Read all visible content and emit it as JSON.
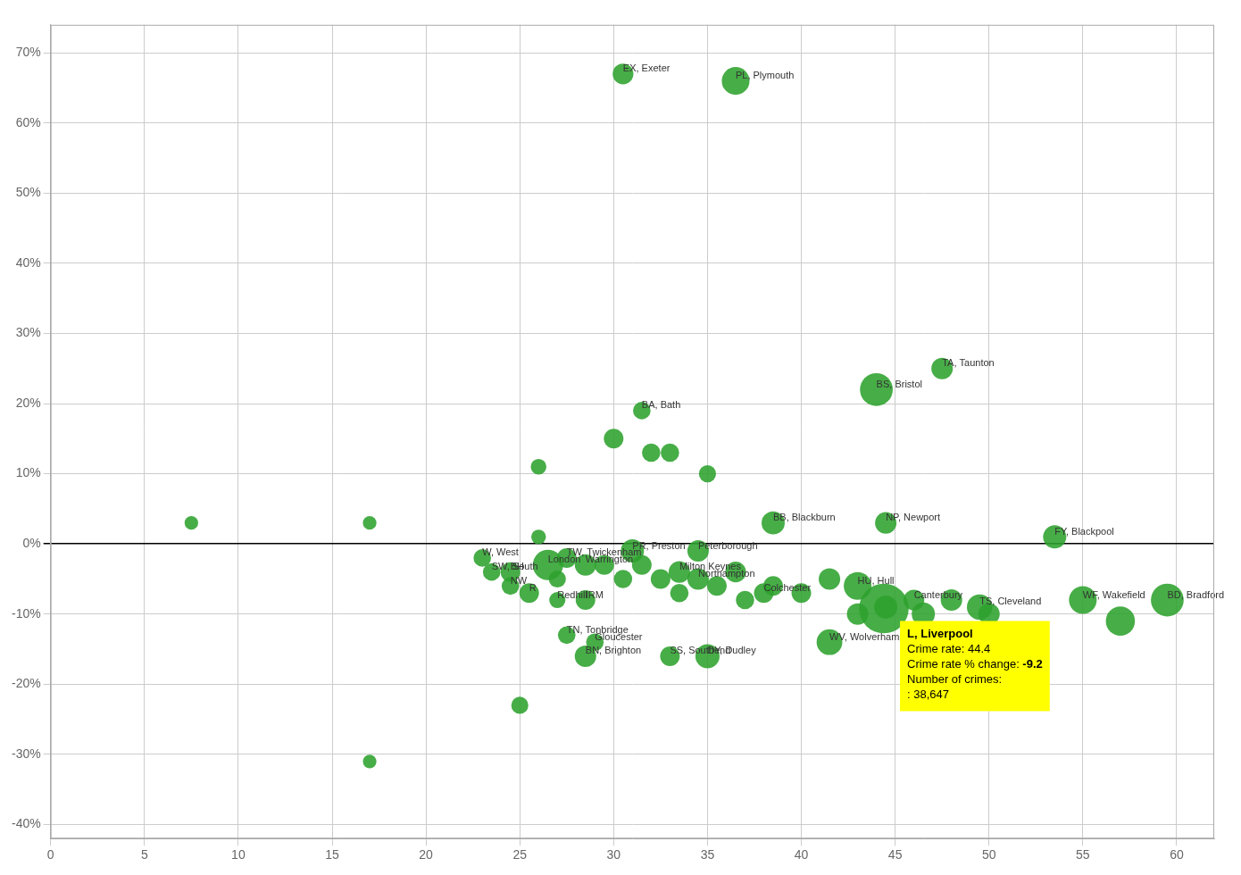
{
  "chart_data": {
    "type": "bubble",
    "color": "#2da22d",
    "grid": true,
    "xlim": [
      0,
      62
    ],
    "ylim": [
      -42,
      74
    ],
    "xticks": [
      0,
      5,
      10,
      15,
      20,
      25,
      30,
      35,
      40,
      45,
      50,
      55,
      60
    ],
    "yticks": [
      {
        "value": -40,
        "label": "-40%"
      },
      {
        "value": -30,
        "label": "-30%"
      },
      {
        "value": -20,
        "label": "-20%"
      },
      {
        "value": -10,
        "label": "-10%"
      },
      {
        "value": 0,
        "label": "0%"
      },
      {
        "value": 10,
        "label": "10%"
      },
      {
        "value": 20,
        "label": "20%"
      },
      {
        "value": 30,
        "label": "30%"
      },
      {
        "value": 40,
        "label": "40%"
      },
      {
        "value": 50,
        "label": "50%"
      },
      {
        "value": 60,
        "label": "60%"
      },
      {
        "value": 70,
        "label": "70%"
      }
    ],
    "points": [
      {
        "label": "EX, Exeter",
        "x": 30.5,
        "y": 67,
        "size": 280
      },
      {
        "label": "PL, Plymouth",
        "x": 36.5,
        "y": 66,
        "size": 500
      },
      {
        "label": "BA, Bath",
        "x": 31.5,
        "y": 19,
        "size": 200
      },
      {
        "label": "BS, Bristol",
        "x": 44.0,
        "y": 22,
        "size": 700
      },
      {
        "label": "TA, Taunton",
        "x": 47.5,
        "y": 25,
        "size": 300
      },
      {
        "label": "BB, Blackburn",
        "x": 38.5,
        "y": 3,
        "size": 350
      },
      {
        "label": "NP, Newport",
        "x": 44.5,
        "y": 3,
        "size": 300
      },
      {
        "label": "FY, Blackpool",
        "x": 53.5,
        "y": 1,
        "size": 350
      },
      {
        "label": "W, West",
        "x": 23.0,
        "y": -2,
        "size": 200
      },
      {
        "label": "SW, South",
        "x": 23.5,
        "y": -4,
        "size": 200
      },
      {
        "label": "BH",
        "x": 24.5,
        "y": -4,
        "size": 250
      },
      {
        "label": "NW",
        "x": 24.5,
        "y": -6,
        "size": 200
      },
      {
        "label": "R",
        "x": 25.5,
        "y": -7,
        "size": 250
      },
      {
        "label": "London",
        "x": 26.5,
        "y": -3,
        "size": 600
      },
      {
        "label": "TW, Twickenham",
        "x": 27.5,
        "y": -2,
        "size": 250
      },
      {
        "label": "Warrington",
        "x": 28.5,
        "y": -3,
        "size": 300
      },
      {
        "label": "TN, Tonbridge",
        "x": 27.5,
        "y": -13,
        "size": 200
      },
      {
        "label": "Redhill",
        "x": 27.0,
        "y": -8,
        "size": 170
      },
      {
        "label": "IRM",
        "x": 28.5,
        "y": -8,
        "size": 250
      },
      {
        "label": "Gloucester",
        "x": 29.0,
        "y": -14,
        "size": 200
      },
      {
        "label": "BN, Brighton",
        "x": 28.5,
        "y": -16,
        "size": 300
      },
      {
        "label": "PR, Preston",
        "x": 31.0,
        "y": -1,
        "size": 350
      },
      {
        "label": "Peterborough",
        "x": 34.5,
        "y": -1,
        "size": 300
      },
      {
        "label": "Milton Keynes",
        "x": 33.5,
        "y": -4,
        "size": 300
      },
      {
        "label": "Northampton",
        "x": 34.5,
        "y": -5,
        "size": 300
      },
      {
        "label": "Colchester",
        "x": 38.0,
        "y": -7,
        "size": 250
      },
      {
        "label": "HU, Hull",
        "x": 43.0,
        "y": -6,
        "size": 500
      },
      {
        "label": "Canterbury",
        "x": 46.0,
        "y": -8,
        "size": 280
      },
      {
        "label": "TS, Cleveland",
        "x": 49.5,
        "y": -9,
        "size": 420
      },
      {
        "label": "WF, Wakefield",
        "x": 55.0,
        "y": -8,
        "size": 500
      },
      {
        "label": "BD, Bradford",
        "x": 59.5,
        "y": -8,
        "size": 700
      },
      {
        "label": "SS, Southend",
        "x": 33.0,
        "y": -16,
        "size": 250
      },
      {
        "label": "DY, Dudley",
        "x": 35.0,
        "y": -16,
        "size": 380
      },
      {
        "label": "WV, Wolverhampton",
        "x": 41.5,
        "y": -14,
        "size": 430
      },
      {
        "label": "L, Liverpool",
        "x": 44.4,
        "y": -9.2,
        "size": 1600
      },
      {
        "label": null,
        "x": 30.0,
        "y": 15,
        "size": 250
      },
      {
        "label": null,
        "x": 32.0,
        "y": 13,
        "size": 220
      },
      {
        "label": null,
        "x": 33.0,
        "y": 13,
        "size": 220
      },
      {
        "label": null,
        "x": 35.0,
        "y": 10,
        "size": 190
      },
      {
        "label": null,
        "x": 26.0,
        "y": 11,
        "size": 160
      },
      {
        "label": null,
        "x": 7.5,
        "y": 3,
        "size": 120
      },
      {
        "label": null,
        "x": 17.0,
        "y": 3,
        "size": 120
      },
      {
        "label": null,
        "x": 25.0,
        "y": -23,
        "size": 190
      },
      {
        "label": null,
        "x": 17.0,
        "y": -31,
        "size": 120
      },
      {
        "label": null,
        "x": 26.0,
        "y": 1,
        "size": 140
      },
      {
        "label": null,
        "x": 27.0,
        "y": -5,
        "size": 190
      },
      {
        "label": null,
        "x": 29.5,
        "y": -3,
        "size": 250
      },
      {
        "label": null,
        "x": 30.5,
        "y": -5,
        "size": 220
      },
      {
        "label": null,
        "x": 31.5,
        "y": -3,
        "size": 250
      },
      {
        "label": null,
        "x": 32.5,
        "y": -5,
        "size": 250
      },
      {
        "label": null,
        "x": 33.5,
        "y": -7,
        "size": 220
      },
      {
        "label": null,
        "x": 35.5,
        "y": -6,
        "size": 250
      },
      {
        "label": null,
        "x": 36.5,
        "y": -4,
        "size": 280
      },
      {
        "label": null,
        "x": 37.0,
        "y": -8,
        "size": 220
      },
      {
        "label": null,
        "x": 38.5,
        "y": -6,
        "size": 250
      },
      {
        "label": null,
        "x": 40.0,
        "y": -7,
        "size": 250
      },
      {
        "label": null,
        "x": 41.5,
        "y": -5,
        "size": 300
      },
      {
        "label": null,
        "x": 43.0,
        "y": -10,
        "size": 300
      },
      {
        "label": null,
        "x": 44.5,
        "y": -9,
        "size": 350
      },
      {
        "label": null,
        "x": 46.5,
        "y": -10,
        "size": 350
      },
      {
        "label": null,
        "x": 48.0,
        "y": -8,
        "size": 300
      },
      {
        "label": null,
        "x": 50.0,
        "y": -10,
        "size": 300
      },
      {
        "label": null,
        "x": 57.0,
        "y": -11,
        "size": 550
      }
    ],
    "annotations": [
      {
        "x": 44.4,
        "y": -9.2,
        "color": "#ffff00",
        "lines": [
          [
            "L, Liverpool"
          ],
          [
            "Crime rate: 44.4"
          ],
          [
            "Crime rate % change: ",
            "-9.2"
          ],
          [
            "Number of crimes:"
          ],
          [
            ": 38,647"
          ]
        ]
      }
    ]
  }
}
